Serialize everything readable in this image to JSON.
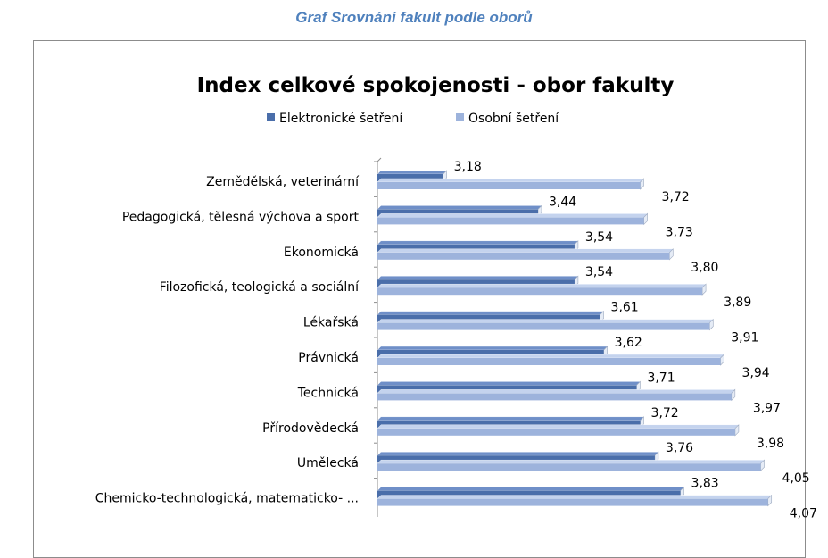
{
  "caption": "Graf Srovnání fakult podle oborů",
  "colors": {
    "electronic": "#4a6eaa",
    "electronic_top": "#6f8fc8",
    "personal": "#9db3dc",
    "personal_top": "#c4d3ee",
    "caption": "#4f81bd"
  },
  "chart_data": {
    "type": "bar",
    "orientation": "horizontal",
    "title": "Index celkové spokojenosti - obor fakulty",
    "legend_position": "top",
    "xlim": [
      3.0,
      4.1
    ],
    "categories": [
      "Zemědělská, veterinární",
      "Pedagogická, tělesná výchova a sport",
      "Ekonomická",
      "Filozofická, teologická a sociální",
      "Lékařská",
      "Právnická",
      "Technická",
      "Přírodovědecká",
      "Umělecká",
      "Chemicko-technologická, matematicko- ..."
    ],
    "series": [
      {
        "name": "Elektronické šetření",
        "values": [
          3.18,
          3.44,
          3.54,
          3.54,
          3.61,
          3.62,
          3.71,
          3.72,
          3.76,
          3.83
        ],
        "labels": [
          "3,18",
          "3,44",
          "3,54",
          "3,54",
          "3,61",
          "3,62",
          "3,71",
          "3,72",
          "3,76",
          "3,83"
        ]
      },
      {
        "name": "Osobní šetření",
        "values": [
          3.72,
          3.73,
          3.8,
          3.89,
          3.91,
          3.94,
          3.97,
          3.98,
          4.05,
          4.07
        ],
        "labels": [
          "3,72",
          "3,73",
          "3,80",
          "3,89",
          "3,91",
          "3,94",
          "3,97",
          "3,98",
          "4,05",
          "4,07"
        ]
      }
    ]
  }
}
